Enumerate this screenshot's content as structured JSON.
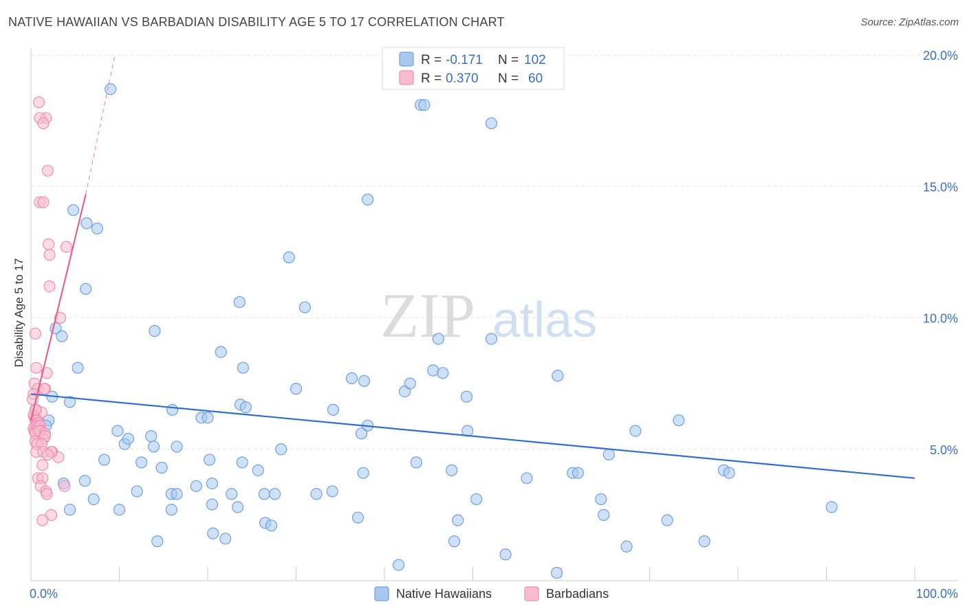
{
  "title": "NATIVE HAWAIIAN VS BARBADIAN DISABILITY AGE 5 TO 17 CORRELATION CHART",
  "source": "Source: ZipAtlas.com",
  "watermark": {
    "zip": "ZIP",
    "atlas": "atlas"
  },
  "legend_top": {
    "r_label": "R =",
    "n_label": "N =",
    "rows": [
      {
        "r": "-0.171",
        "n": "102",
        "color": "#a8c8f0",
        "stroke": "#6f9fe0"
      },
      {
        "r": "0.370",
        "n": "60",
        "color": "#f8bcd0",
        "stroke": "#ee8fb0"
      }
    ]
  },
  "chart_data": {
    "type": "scatter",
    "title": "NATIVE HAWAIIAN VS BARBADIAN DISABILITY AGE 5 TO 17 CORRELATION CHART",
    "xlabel": "",
    "ylabel": "Disability Age 5 to 17",
    "xlim": [
      0,
      100
    ],
    "ylim": [
      0,
      20
    ],
    "x_tick_labels": [
      "0.0%",
      "100.0%"
    ],
    "y_tick_labels": [
      "5.0%",
      "10.0%",
      "15.0%",
      "20.0%"
    ],
    "y_ticks": [
      5,
      10,
      15,
      20
    ],
    "grid": true,
    "legend_position": "bottom",
    "series": [
      {
        "name": "Native Hawaiians",
        "color": "#a8c8f0",
        "stroke": "#6f9fe0",
        "line_color": "#2f6fcc",
        "trend": {
          "x": [
            0,
            100
          ],
          "y": [
            7.1,
            3.9
          ]
        },
        "points": [
          [
            9.0,
            18.7
          ],
          [
            38.1,
            14.5
          ],
          [
            4.8,
            14.1
          ],
          [
            6.3,
            13.6
          ],
          [
            7.5,
            13.4
          ],
          [
            29.2,
            12.3
          ],
          [
            52.1,
            17.4
          ],
          [
            44.1,
            18.1
          ],
          [
            44.5,
            18.1
          ],
          [
            6.2,
            11.1
          ],
          [
            31.0,
            10.4
          ],
          [
            23.6,
            10.6
          ],
          [
            2.8,
            9.6
          ],
          [
            3.5,
            9.3
          ],
          [
            14.0,
            9.5
          ],
          [
            46.1,
            9.2
          ],
          [
            52.1,
            9.2
          ],
          [
            5.3,
            8.1
          ],
          [
            21.5,
            8.7
          ],
          [
            24.0,
            8.1
          ],
          [
            45.5,
            8.0
          ],
          [
            46.6,
            7.9
          ],
          [
            59.6,
            7.8
          ],
          [
            30.0,
            7.3
          ],
          [
            36.3,
            7.7
          ],
          [
            37.7,
            7.6
          ],
          [
            42.3,
            7.2
          ],
          [
            42.9,
            7.5
          ],
          [
            49.3,
            7.0
          ],
          [
            2.4,
            7.0
          ],
          [
            4.4,
            6.8
          ],
          [
            2.0,
            6.1
          ],
          [
            1.7,
            5.9
          ],
          [
            16.0,
            6.5
          ],
          [
            19.3,
            6.2
          ],
          [
            20.0,
            6.2
          ],
          [
            23.7,
            6.7
          ],
          [
            24.3,
            6.6
          ],
          [
            34.2,
            6.5
          ],
          [
            38.1,
            5.9
          ],
          [
            37.4,
            5.6
          ],
          [
            49.4,
            5.7
          ],
          [
            68.4,
            5.7
          ],
          [
            73.3,
            6.1
          ],
          [
            9.8,
            5.7
          ],
          [
            10.6,
            5.2
          ],
          [
            11.0,
            5.4
          ],
          [
            13.6,
            5.5
          ],
          [
            13.9,
            5.1
          ],
          [
            16.5,
            5.1
          ],
          [
            8.3,
            4.6
          ],
          [
            12.5,
            4.5
          ],
          [
            14.8,
            4.3
          ],
          [
            20.2,
            4.6
          ],
          [
            23.9,
            4.5
          ],
          [
            25.7,
            4.2
          ],
          [
            28.3,
            5.0
          ],
          [
            37.6,
            4.1
          ],
          [
            43.6,
            4.5
          ],
          [
            47.6,
            4.2
          ],
          [
            3.7,
            3.7
          ],
          [
            6.1,
            3.8
          ],
          [
            12.0,
            3.4
          ],
          [
            15.9,
            3.3
          ],
          [
            16.5,
            3.3
          ],
          [
            18.7,
            3.6
          ],
          [
            20.5,
            3.7
          ],
          [
            22.7,
            3.3
          ],
          [
            26.4,
            3.3
          ],
          [
            27.6,
            3.3
          ],
          [
            32.3,
            3.3
          ],
          [
            34.1,
            3.4
          ],
          [
            56.1,
            3.9
          ],
          [
            61.3,
            4.1
          ],
          [
            61.9,
            4.1
          ],
          [
            65.4,
            4.8
          ],
          [
            78.4,
            4.2
          ],
          [
            79.0,
            4.1
          ],
          [
            4.4,
            2.7
          ],
          [
            7.1,
            3.1
          ],
          [
            10.0,
            2.7
          ],
          [
            15.9,
            2.7
          ],
          [
            20.5,
            2.9
          ],
          [
            23.4,
            2.8
          ],
          [
            26.5,
            2.2
          ],
          [
            27.2,
            2.1
          ],
          [
            37.0,
            2.4
          ],
          [
            48.3,
            2.3
          ],
          [
            50.4,
            3.1
          ],
          [
            64.5,
            3.1
          ],
          [
            64.8,
            2.5
          ],
          [
            72.0,
            2.3
          ],
          [
            90.6,
            2.8
          ],
          [
            14.3,
            1.5
          ],
          [
            20.6,
            1.8
          ],
          [
            22.0,
            1.6
          ],
          [
            47.9,
            1.5
          ],
          [
            53.7,
            1.0
          ],
          [
            59.5,
            0.3
          ],
          [
            67.4,
            1.3
          ],
          [
            76.2,
            1.5
          ],
          [
            41.6,
            0.6
          ]
        ]
      },
      {
        "name": "Barbadians",
        "color": "#f8bcd0",
        "stroke": "#ee8fb0",
        "line_color": "#e8608c",
        "trend": {
          "x": [
            0,
            6.2
          ],
          "y": [
            6.1,
            14.7
          ]
        },
        "trend_ext": {
          "x": [
            6.2,
            9.5
          ],
          "y": [
            14.7,
            20.0
          ]
        },
        "points": [
          [
            0.9,
            18.2
          ],
          [
            1.7,
            17.6
          ],
          [
            1.0,
            17.6
          ],
          [
            1.4,
            17.4
          ],
          [
            1.9,
            15.6
          ],
          [
            1.0,
            14.4
          ],
          [
            1.4,
            14.4
          ],
          [
            2.0,
            12.8
          ],
          [
            2.1,
            12.4
          ],
          [
            2.1,
            11.2
          ],
          [
            4.0,
            12.7
          ],
          [
            3.3,
            10.0
          ],
          [
            0.5,
            9.4
          ],
          [
            0.6,
            8.1
          ],
          [
            1.8,
            7.9
          ],
          [
            0.4,
            7.5
          ],
          [
            0.8,
            7.3
          ],
          [
            1.6,
            7.3
          ],
          [
            1.5,
            7.3
          ],
          [
            0.3,
            7.1
          ],
          [
            0.2,
            6.9
          ],
          [
            0.6,
            6.5
          ],
          [
            1.2,
            6.4
          ],
          [
            0.3,
            6.3
          ],
          [
            0.4,
            6.2
          ],
          [
            0.5,
            6.1
          ],
          [
            0.6,
            6.0
          ],
          [
            0.7,
            6.1
          ],
          [
            0.8,
            6.0
          ],
          [
            0.9,
            5.9
          ],
          [
            0.3,
            5.8
          ],
          [
            0.4,
            5.7
          ],
          [
            0.6,
            5.9
          ],
          [
            0.8,
            5.8
          ],
          [
            1.0,
            5.9
          ],
          [
            1.1,
            5.7
          ],
          [
            0.5,
            5.6
          ],
          [
            0.9,
            5.7
          ],
          [
            1.6,
            5.6
          ],
          [
            1.4,
            5.4
          ],
          [
            1.6,
            5.5
          ],
          [
            0.5,
            5.3
          ],
          [
            0.7,
            5.2
          ],
          [
            1.2,
            5.2
          ],
          [
            0.6,
            4.9
          ],
          [
            1.4,
            4.9
          ],
          [
            2.4,
            4.9
          ],
          [
            3.1,
            4.7
          ],
          [
            1.3,
            4.4
          ],
          [
            0.8,
            3.9
          ],
          [
            1.3,
            3.9
          ],
          [
            1.1,
            3.6
          ],
          [
            3.8,
            3.6
          ],
          [
            1.7,
            3.4
          ],
          [
            1.8,
            3.3
          ],
          [
            2.3,
            2.5
          ],
          [
            1.3,
            2.3
          ],
          [
            2.3,
            4.9
          ],
          [
            1.9,
            4.8
          ],
          [
            0.5,
            6.5
          ]
        ]
      }
    ]
  },
  "legend_bottom": [
    {
      "label": "Native Hawaiians"
    },
    {
      "label": "Barbadians"
    }
  ]
}
